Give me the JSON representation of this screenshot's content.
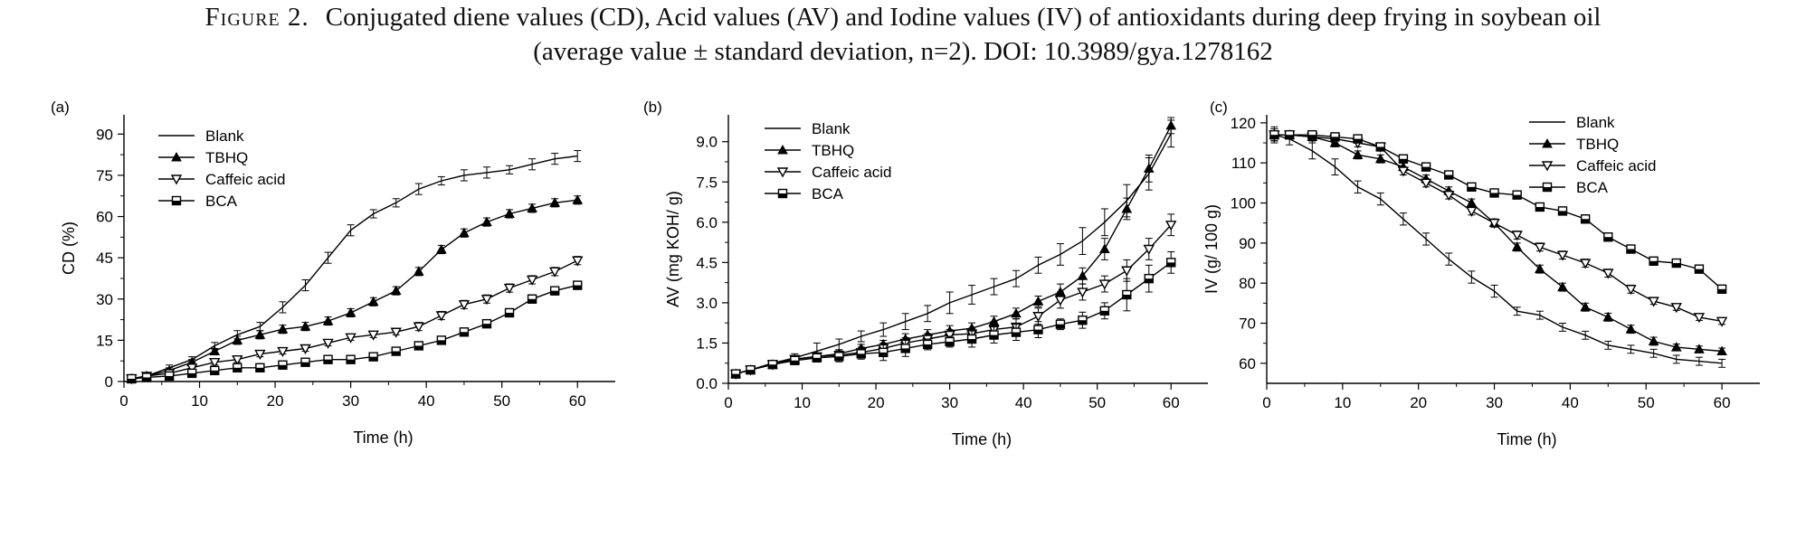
{
  "caption": {
    "figure_label": "Figure 2.",
    "line1": "Conjugated diene values (CD), Acid values (AV) and Iodine values (IV) of antioxidants during deep frying in soybean oil",
    "line2": "(average value ± standard deviation, n=2). DOI: 10.3989/gya.1278162"
  },
  "chart_data": [
    {
      "type": "line",
      "panel_label": "(a)",
      "xlabel": "Time (h)",
      "ylabel": "CD (%)",
      "xlim": [
        0,
        65
      ],
      "ylim": [
        0,
        97
      ],
      "xticks": [
        0,
        10,
        20,
        30,
        40,
        50,
        60
      ],
      "yticks": [
        0,
        15,
        30,
        45,
        60,
        75,
        90
      ],
      "ytick_labels": [
        "0",
        "15",
        "30",
        "45",
        "60",
        "75",
        "90"
      ],
      "legend_position": "top-left",
      "x": [
        1,
        3,
        6,
        9,
        12,
        15,
        18,
        21,
        24,
        27,
        30,
        33,
        36,
        39,
        42,
        45,
        48,
        51,
        54,
        57,
        60
      ],
      "series": [
        {
          "name": "Blank",
          "marker": "none",
          "values": [
            1,
            2,
            5,
            8,
            13,
            17,
            20,
            27,
            35,
            45,
            55,
            61,
            65,
            70,
            73,
            75,
            76,
            77,
            79,
            81,
            82
          ],
          "errors": [
            0.5,
            0.5,
            1,
            1,
            1.2,
            1.5,
            1.5,
            2,
            2,
            2,
            2,
            1.5,
            1.5,
            2,
            1.5,
            2,
            2,
            1.5,
            2,
            2,
            2
          ]
        },
        {
          "name": "TBHQ",
          "marker": "triangle-up-filled",
          "values": [
            1,
            2,
            4,
            7,
            11,
            15,
            17,
            19,
            20,
            22,
            25,
            29,
            33,
            40,
            48,
            54,
            58,
            61,
            63,
            65,
            66
          ],
          "errors": [
            0.5,
            0.5,
            1,
            1,
            1,
            1.5,
            1.5,
            1.5,
            1.5,
            1.5,
            1.5,
            1.5,
            1.5,
            1.5,
            1.5,
            1.5,
            1.5,
            1.5,
            1.5,
            1.5,
            1.5
          ]
        },
        {
          "name": "Caffeic acid",
          "marker": "triangle-down-open",
          "values": [
            1,
            2,
            3,
            5,
            7,
            8,
            10,
            11,
            12,
            14,
            16,
            17,
            18,
            20,
            24,
            28,
            30,
            34,
            37,
            40,
            44
          ],
          "errors": [
            0.5,
            0.5,
            0.5,
            1,
            1,
            1,
            1,
            1,
            1,
            1,
            1,
            1,
            1,
            1.5,
            1.5,
            1.5,
            1.5,
            1.5,
            1.5,
            1.5,
            1.5
          ]
        },
        {
          "name": "BCA",
          "marker": "square-half",
          "values": [
            1,
            1.5,
            2,
            3,
            4,
            5,
            5,
            6,
            7,
            8,
            8,
            9,
            11,
            13,
            15,
            18,
            21,
            25,
            30,
            33,
            35
          ],
          "errors": [
            0.5,
            0.5,
            0.5,
            0.5,
            0.5,
            0.5,
            0.5,
            0.5,
            0.5,
            0.5,
            0.5,
            0.5,
            0.8,
            1,
            1,
            1,
            1,
            1.5,
            1.5,
            1.5,
            1.5
          ]
        }
      ]
    },
    {
      "type": "line",
      "panel_label": "(b)",
      "xlabel": "Time (h)",
      "ylabel": "AV (mg KOH/ g)",
      "xlim": [
        0,
        65
      ],
      "ylim": [
        0,
        10
      ],
      "xticks": [
        0,
        10,
        20,
        30,
        40,
        50,
        60
      ],
      "yticks": [
        0,
        1.5,
        3,
        4.5,
        6,
        7.5,
        9
      ],
      "ytick_labels": [
        "0.0",
        "1.5",
        "3.0",
        "4.5",
        "6.0",
        "7.5",
        "9.0"
      ],
      "legend_position": "top-left",
      "x": [
        1,
        3,
        6,
        9,
        12,
        15,
        18,
        21,
        24,
        27,
        30,
        33,
        36,
        39,
        42,
        45,
        48,
        51,
        54,
        57,
        60
      ],
      "series": [
        {
          "name": "Blank",
          "marker": "none",
          "values": [
            0.35,
            0.5,
            0.75,
            0.95,
            1.2,
            1.45,
            1.75,
            2.0,
            2.3,
            2.6,
            3.0,
            3.3,
            3.6,
            3.9,
            4.4,
            4.8,
            5.3,
            6.0,
            6.8,
            7.8,
            9.3
          ],
          "errors": [
            0.05,
            0.1,
            0.1,
            0.15,
            0.3,
            0.2,
            0.2,
            0.25,
            0.3,
            0.3,
            0.4,
            0.35,
            0.3,
            0.3,
            0.3,
            0.4,
            0.5,
            0.5,
            0.6,
            0.6,
            0.5
          ]
        },
        {
          "name": "TBHQ",
          "marker": "triangle-up-filled",
          "values": [
            0.35,
            0.5,
            0.7,
            0.9,
            1.0,
            1.1,
            1.3,
            1.45,
            1.65,
            1.8,
            1.95,
            2.05,
            2.3,
            2.6,
            3.05,
            3.4,
            4.0,
            5.0,
            6.5,
            8.0,
            9.6
          ],
          "errors": [
            0.05,
            0.05,
            0.1,
            0.1,
            0.1,
            0.15,
            0.15,
            0.15,
            0.2,
            0.2,
            0.2,
            0.2,
            0.2,
            0.2,
            0.2,
            0.3,
            0.3,
            0.4,
            0.4,
            0.5,
            0.3
          ]
        },
        {
          "name": "Caffeic acid",
          "marker": "triangle-down-open",
          "values": [
            0.35,
            0.5,
            0.7,
            0.9,
            1.0,
            1.05,
            1.15,
            1.3,
            1.5,
            1.65,
            1.8,
            1.85,
            2.0,
            2.1,
            2.5,
            3.1,
            3.4,
            3.7,
            4.2,
            5.0,
            5.9
          ],
          "errors": [
            0.05,
            0.05,
            0.1,
            0.1,
            0.1,
            0.1,
            0.2,
            0.2,
            0.2,
            0.2,
            0.2,
            0.2,
            0.3,
            0.3,
            0.3,
            0.3,
            0.3,
            0.3,
            0.4,
            0.4,
            0.4
          ]
        },
        {
          "name": "BCA",
          "marker": "square-half",
          "values": [
            0.35,
            0.5,
            0.7,
            0.85,
            0.95,
            1.0,
            1.1,
            1.15,
            1.3,
            1.45,
            1.55,
            1.65,
            1.8,
            1.9,
            2.0,
            2.2,
            2.35,
            2.7,
            3.3,
            3.9,
            4.5
          ],
          "errors": [
            0.05,
            0.05,
            0.1,
            0.1,
            0.1,
            0.2,
            0.2,
            0.3,
            0.3,
            0.2,
            0.2,
            0.3,
            0.3,
            0.3,
            0.3,
            0.2,
            0.3,
            0.3,
            0.6,
            0.5,
            0.4
          ]
        }
      ]
    },
    {
      "type": "line",
      "panel_label": "(c)",
      "xlabel": "Time (h)",
      "ylabel": "IV (g/ 100 g)",
      "xlim": [
        0,
        65
      ],
      "ylim": [
        55,
        122
      ],
      "xticks": [
        0,
        10,
        20,
        30,
        40,
        50,
        60
      ],
      "yticks": [
        60,
        70,
        80,
        90,
        100,
        110,
        120
      ],
      "ytick_labels": [
        "60",
        "70",
        "80",
        "90",
        "100",
        "110",
        "120"
      ],
      "legend_position": "top-right",
      "x": [
        1,
        3,
        6,
        9,
        12,
        15,
        18,
        21,
        24,
        27,
        30,
        33,
        36,
        39,
        42,
        45,
        48,
        51,
        54,
        57,
        60
      ],
      "series": [
        {
          "name": "Blank",
          "marker": "none",
          "values": [
            117,
            116,
            113,
            109,
            104,
            101,
            96,
            91,
            86,
            81.5,
            78,
            73,
            72,
            69,
            67,
            64.5,
            63.5,
            62.5,
            61,
            60.5,
            60
          ],
          "errors": [
            2,
            1.5,
            2,
            2,
            1.5,
            1.5,
            1.5,
            1.5,
            1.5,
            1.5,
            1.5,
            1,
            1,
            1,
            1,
            1,
            1,
            1,
            1,
            1,
            1
          ]
        },
        {
          "name": "TBHQ",
          "marker": "triangle-up-filled",
          "values": [
            117,
            117,
            116.5,
            115,
            112,
            111,
            109,
            106,
            103,
            100,
            95,
            89,
            83.5,
            79,
            74,
            71.5,
            68.5,
            65.5,
            64,
            63.5,
            63
          ],
          "errors": [
            1.5,
            1,
            1,
            1,
            1,
            1,
            1,
            1,
            1,
            1,
            1,
            1,
            1,
            1,
            1,
            1,
            1,
            1,
            0.8,
            0.8,
            0.8
          ]
        },
        {
          "name": "Caffeic acid",
          "marker": "triangle-down-open",
          "values": [
            117,
            117,
            116.5,
            116,
            115,
            114,
            108,
            105,
            102,
            98,
            95,
            92,
            89,
            87,
            85,
            82.5,
            78.5,
            75.5,
            74,
            71.5,
            70.5
          ],
          "errors": [
            1.5,
            1,
            1,
            1,
            1,
            1,
            1,
            1,
            1,
            1,
            1,
            1,
            1,
            1,
            1,
            1,
            1,
            0.8,
            0.8,
            0.8,
            0.8
          ]
        },
        {
          "name": "BCA",
          "marker": "square-half",
          "values": [
            117,
            117,
            117,
            116.5,
            116,
            114,
            111,
            109,
            107,
            104,
            102.5,
            102,
            99,
            98,
            96,
            91.5,
            88.5,
            85.5,
            85,
            83.5,
            78.5
          ],
          "errors": [
            1.5,
            1,
            1,
            1,
            1,
            1,
            1,
            1,
            1,
            1,
            1,
            1,
            1,
            1,
            1,
            1,
            1,
            0.8,
            0.8,
            0.8,
            0.8
          ]
        }
      ]
    }
  ]
}
